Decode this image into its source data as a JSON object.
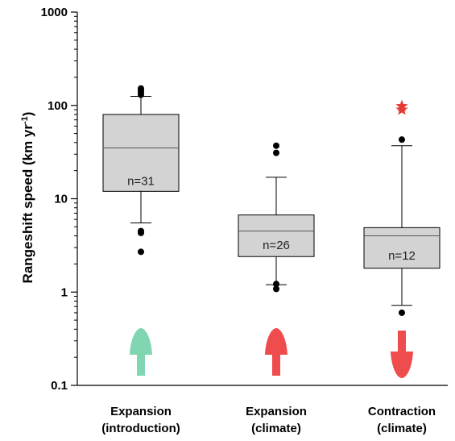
{
  "chart_data": {
    "type": "boxplot",
    "yscale": "log",
    "ylim": [
      0.1,
      1000
    ],
    "yticks": [
      "0.1",
      "1",
      "10",
      "100",
      "1000"
    ],
    "ylabel": "Rangeshift speed (km yr",
    "ylabel_sup": "-1",
    "ylabel_close": ")",
    "grid": false,
    "box_color": "#d3d3d3",
    "categories": [
      {
        "line1": "Expansion",
        "line2": "(introduction)"
      },
      {
        "line1": "Expansion",
        "line2": "(climate)"
      },
      {
        "line1": "Contraction",
        "line2": "(climate)"
      }
    ],
    "boxes": [
      {
        "q1": 12,
        "median": 35,
        "q3": 80,
        "whisker_low": 5.5,
        "whisker_high": 125,
        "outliers": [
          4.5,
          4.3,
          2.7,
          130,
          138,
          145,
          152
        ],
        "n_label": "n=31",
        "n_value": 15.5
      },
      {
        "q1": 2.4,
        "median": 4.5,
        "q3": 6.7,
        "whisker_low": 1.2,
        "whisker_high": 17,
        "outliers": [
          1.22,
          1.08,
          31,
          37
        ],
        "n_label": "n=26",
        "n_value": 3.2
      },
      {
        "q1": 1.8,
        "median": 4.0,
        "q3": 4.9,
        "whisker_low": 0.72,
        "whisker_high": 37,
        "outliers": [
          0.6,
          43
        ],
        "star_outliers": [
          98,
          90
        ],
        "n_label": "n=12",
        "n_value": 2.45
      }
    ],
    "arrows": [
      {
        "direction": "up",
        "color": "#7fd6b0"
      },
      {
        "direction": "up",
        "color": "#ef4d4d"
      },
      {
        "direction": "down",
        "color": "#ef4d4d"
      }
    ],
    "star_color": "#e53935"
  }
}
